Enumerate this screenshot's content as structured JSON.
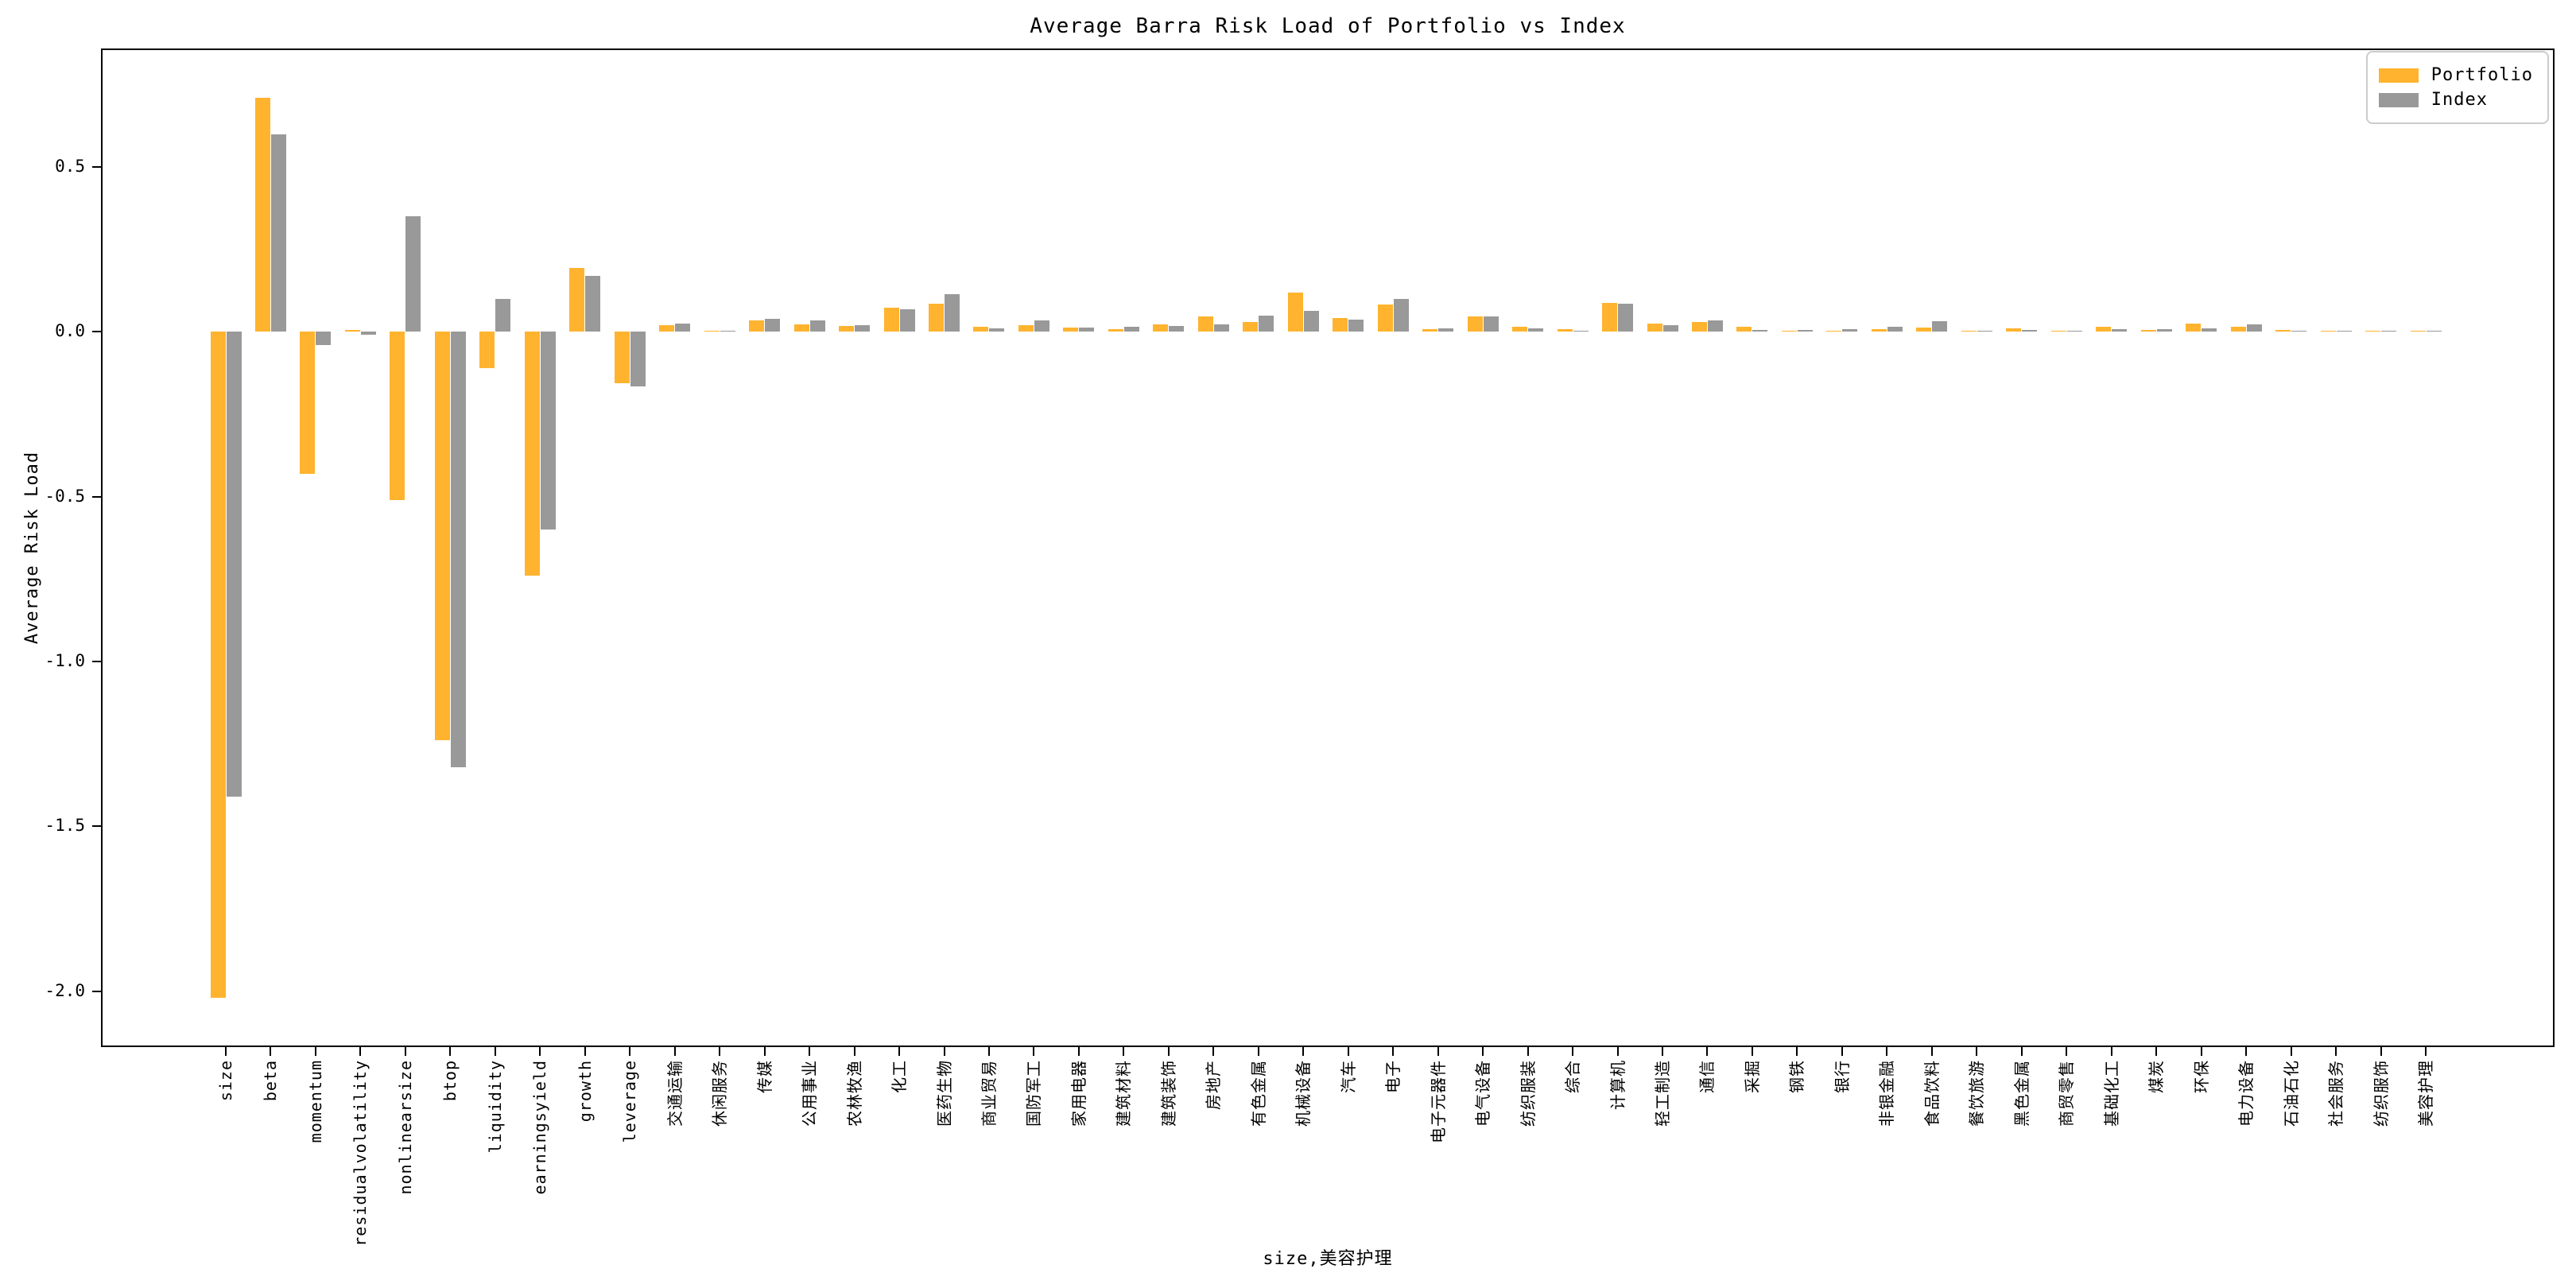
{
  "title": "Average Barra Risk Load of Portfolio vs Index",
  "y_axis_label": "Average Risk Load",
  "x_axis_label": "size,美容护理",
  "legend": {
    "items": [
      {
        "label": "Portfolio",
        "color": "#ffb32e"
      },
      {
        "label": "Index",
        "color": "#999999"
      }
    ]
  },
  "colors": {
    "portfolio": "#ffb32e",
    "index": "#999999",
    "spine": "#000000",
    "background": "#ffffff",
    "legend_border": "#cccccc"
  },
  "chart_data": {
    "type": "bar",
    "title": "Average Barra Risk Load of Portfolio vs Index",
    "xlabel": "size,美容护理",
    "ylabel": "Average Risk Load",
    "grid": false,
    "legend_position": "upper right",
    "ylim": [
      -2.17,
      0.86
    ],
    "yticks": [
      {
        "label": "0.5",
        "value": 0.5
      },
      {
        "label": "0.0",
        "value": 0.0
      },
      {
        "label": "-0.5",
        "value": -0.5
      },
      {
        "label": "-1.0",
        "value": -1.0
      },
      {
        "label": "-1.5",
        "value": -1.5
      },
      {
        "label": "-2.0",
        "value": -2.0
      }
    ],
    "categories": [
      "size",
      "beta",
      "momentum",
      "residualvolatility",
      "nonlinearsize",
      "btop",
      "liquidity",
      "earningsyield",
      "growth",
      "leverage",
      "交通运输",
      "休闲服务",
      "传媒",
      "公用事业",
      "农林牧渔",
      "化工",
      "医药生物",
      "商业贸易",
      "国防军工",
      "家用电器",
      "建筑材料",
      "建筑装饰",
      "房地产",
      "有色金属",
      "机械设备",
      "汽车",
      "电子",
      "电子元器件",
      "电气设备",
      "纺织服装",
      "综合",
      "计算机",
      "轻工制造",
      "通信",
      "采掘",
      "钢铁",
      "银行",
      "非银金融",
      "食品饮料",
      "餐饮旅游",
      "黑色金属",
      "商贸零售",
      "基础化工",
      "煤炭",
      "环保",
      "电力设备",
      "石油石化",
      "社会服务",
      "纺织服饰",
      "美容护理"
    ],
    "series": [
      {
        "name": "Portfolio",
        "color": "#ffb32e",
        "values": [
          -2.02,
          0.71,
          -0.43,
          0.005,
          -0.51,
          -1.24,
          -0.11,
          -0.74,
          0.195,
          -0.155,
          0.02,
          0.004,
          0.035,
          0.022,
          0.018,
          0.074,
          0.086,
          0.015,
          0.02,
          0.013,
          0.009,
          0.024,
          0.047,
          0.031,
          0.12,
          0.041,
          0.083,
          0.009,
          0.046,
          0.016,
          0.009,
          0.088,
          0.026,
          0.031,
          0.015,
          0.004,
          0.004,
          0.008,
          0.013,
          0.002,
          0.011,
          0.003,
          0.015,
          0.005,
          0.025,
          0.015,
          0.006,
          0.003,
          0.003,
          0.003
        ]
      },
      {
        "name": "Index",
        "color": "#999999",
        "values": [
          -1.41,
          0.6,
          -0.04,
          -0.008,
          0.35,
          -1.32,
          0.1,
          -0.6,
          0.17,
          -0.165,
          0.026,
          0.002,
          0.04,
          0.035,
          0.021,
          0.069,
          0.115,
          0.011,
          0.036,
          0.013,
          0.015,
          0.019,
          0.023,
          0.05,
          0.063,
          0.038,
          0.099,
          0.01,
          0.046,
          0.01,
          0.004,
          0.085,
          0.02,
          0.034,
          0.007,
          0.005,
          0.008,
          0.015,
          0.033,
          0.002,
          0.005,
          0.002,
          0.008,
          0.009,
          0.011,
          0.022,
          0.003,
          0.002,
          0.002,
          0.002
        ]
      }
    ]
  }
}
